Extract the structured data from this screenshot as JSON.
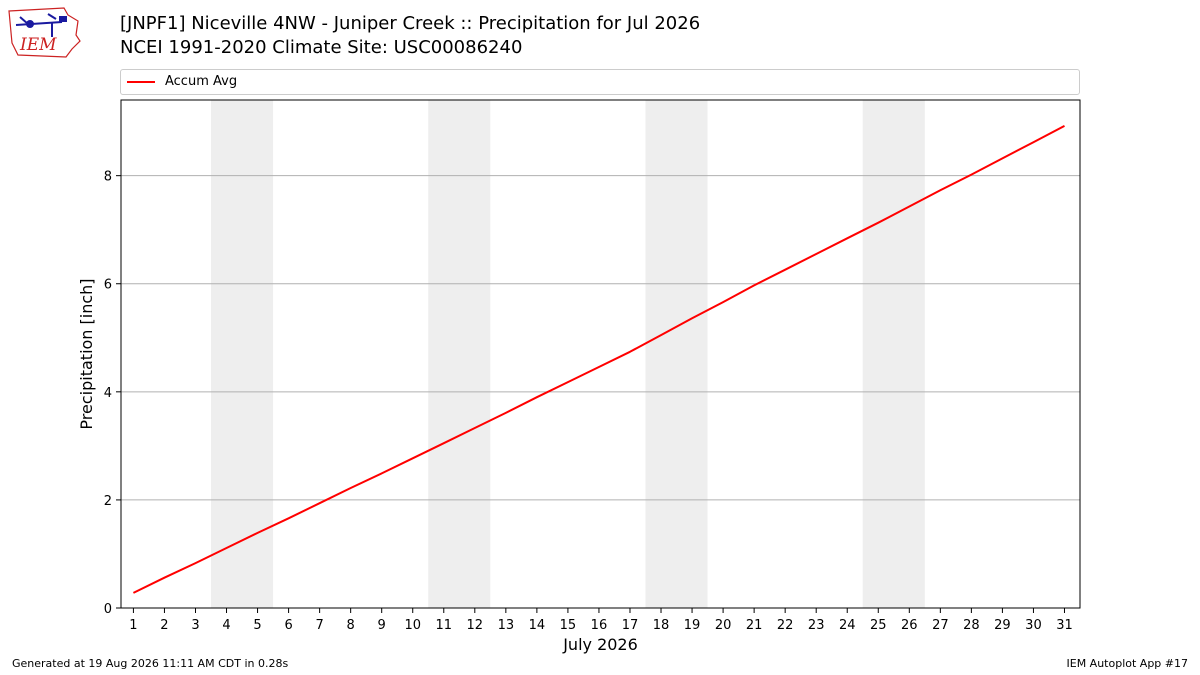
{
  "header": {
    "logo_text": "IEM",
    "title_line1": "[JNPF1] Niceville 4NW - Juniper Creek :: Precipitation for Jul 2026",
    "title_line2": "NCEI 1991-2020 Climate Site: USC00086240"
  },
  "footer": {
    "left": "Generated at 19 Aug 2026 11:11 AM CDT in 0.28s",
    "right": "IEM Autoplot App #17"
  },
  "colors": {
    "series": "#ff0000",
    "weekend_band": "#eeeeee",
    "grid": "#b0b0b0",
    "logo": "#cc2222"
  },
  "chart_data": {
    "type": "line",
    "title": "[JNPF1] Niceville 4NW - Juniper Creek :: Precipitation for Jul 2026",
    "subtitle": "NCEI 1991-2020 Climate Site: USC00086240",
    "xlabel": "July 2026",
    "ylabel": "Precipitation [inch]",
    "xlim": [
      0.6,
      31.5
    ],
    "ylim": [
      0,
      9.4
    ],
    "x_ticks": [
      1,
      2,
      3,
      4,
      5,
      6,
      7,
      8,
      9,
      10,
      11,
      12,
      13,
      14,
      15,
      16,
      17,
      18,
      19,
      20,
      21,
      22,
      23,
      24,
      25,
      26,
      27,
      28,
      29,
      30,
      31
    ],
    "y_ticks": [
      0,
      2,
      4,
      6,
      8
    ],
    "grid": "horizontal",
    "legend_position": "top",
    "weekend_bands": [
      [
        3.5,
        5.5
      ],
      [
        10.5,
        12.5
      ],
      [
        17.5,
        19.5
      ],
      [
        24.5,
        26.5
      ]
    ],
    "series": [
      {
        "name": "Accum Avg",
        "x": [
          1,
          2,
          3,
          4,
          5,
          6,
          7,
          8,
          9,
          10,
          11,
          12,
          13,
          14,
          15,
          16,
          17,
          18,
          19,
          20,
          21,
          22,
          23,
          24,
          25,
          26,
          27,
          28,
          29,
          30,
          31
        ],
        "values": [
          0.28,
          0.56,
          0.83,
          1.11,
          1.39,
          1.66,
          1.94,
          2.22,
          2.49,
          2.77,
          3.05,
          3.33,
          3.61,
          3.9,
          4.18,
          4.46,
          4.74,
          5.05,
          5.36,
          5.66,
          5.97,
          6.26,
          6.55,
          6.84,
          7.13,
          7.43,
          7.73,
          8.02,
          8.32,
          8.62,
          8.92
        ]
      }
    ]
  }
}
